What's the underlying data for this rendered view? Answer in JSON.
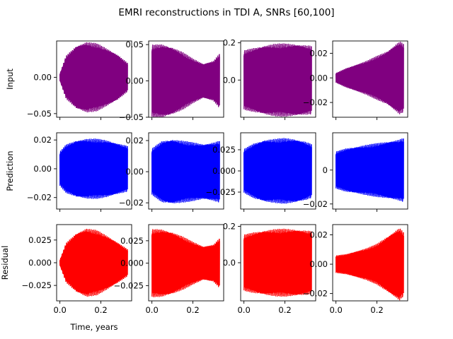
{
  "figure": {
    "title": "EMRI reconstructions in TDI A, SNRs [60,100]",
    "xlabel": "Time, years",
    "row_labels": [
      "Input",
      "Prediction",
      "Residual"
    ]
  },
  "colors": {
    "input": "#800080",
    "prediction": "#0000ff",
    "residual": "#ff0000"
  },
  "chart_data": [
    {
      "type": "area",
      "row": "Input",
      "col": 1,
      "series": [
        {
          "name": "",
          "color": "#800080",
          "x": [
            0,
            0.03,
            0.08,
            0.13,
            0.18,
            0.23,
            0.28,
            0.33
          ],
          "envelope": [
            0.005,
            0.03,
            0.044,
            0.049,
            0.047,
            0.04,
            0.032,
            0.02
          ]
        }
      ],
      "xlim": [
        -0.016,
        0.35
      ],
      "ylim": [
        -0.055,
        0.05
      ],
      "xticks": [
        0.0,
        0.2
      ],
      "xtick_labels": [
        "",
        ""
      ],
      "yticks": [
        -0.05,
        0.0
      ],
      "ytick_labels": [
        "−0.05",
        "0.00"
      ]
    },
    {
      "type": "area",
      "row": "Input",
      "col": 2,
      "series": [
        {
          "name": "",
          "color": "#800080",
          "x": [
            0,
            0.05,
            0.1,
            0.15,
            0.2,
            0.25,
            0.3,
            0.33
          ],
          "envelope": [
            0.05,
            0.051,
            0.047,
            0.04,
            0.031,
            0.024,
            0.028,
            0.038
          ]
        }
      ],
      "xlim": [
        -0.016,
        0.35
      ],
      "ylim": [
        -0.05,
        0.055
      ],
      "xticks": [
        0.0,
        0.2
      ],
      "xtick_labels": [
        "",
        ""
      ],
      "yticks": [
        -0.05,
        0.0,
        0.05
      ],
      "ytick_labels": [
        "−0.05",
        "0.00",
        "0.05"
      ]
    },
    {
      "type": "area",
      "row": "Input",
      "col": 3,
      "series": [
        {
          "name": "",
          "color": "#800080",
          "x": [
            0,
            0.05,
            0.1,
            0.15,
            0.2,
            0.25,
            0.3,
            0.33
          ],
          "envelope": [
            0.16,
            0.175,
            0.188,
            0.196,
            0.198,
            0.196,
            0.19,
            0.185
          ]
        }
      ],
      "xlim": [
        -0.016,
        0.35
      ],
      "ylim": [
        -0.2,
        0.21
      ],
      "xticks": [
        0.0,
        0.2
      ],
      "xtick_labels": [
        "",
        ""
      ],
      "yticks": [
        0.0,
        0.2
      ],
      "ytick_labels": [
        "0.0",
        "0.2"
      ]
    },
    {
      "type": "area",
      "row": "Input",
      "col": 4,
      "series": [
        {
          "name": "",
          "color": "#800080",
          "x": [
            0,
            0.05,
            0.1,
            0.15,
            0.2,
            0.25,
            0.28,
            0.31,
            0.33
          ],
          "envelope": [
            0.004,
            0.008,
            0.011,
            0.014,
            0.018,
            0.022,
            0.026,
            0.03,
            0.028
          ]
        }
      ],
      "xlim": [
        -0.016,
        0.35
      ],
      "ylim": [
        -0.032,
        0.03
      ],
      "xticks": [
        0.0,
        0.2
      ],
      "xtick_labels": [
        "",
        ""
      ],
      "yticks": [
        -0.02,
        0.0,
        0.02
      ],
      "ytick_labels": [
        "−0.02",
        "0.00",
        "0.02"
      ]
    },
    {
      "type": "area",
      "row": "Prediction",
      "col": 1,
      "series": [
        {
          "name": "",
          "color": "#0000ff",
          "x": [
            0,
            0.03,
            0.08,
            0.13,
            0.18,
            0.23,
            0.28,
            0.33
          ],
          "envelope": [
            0.012,
            0.017,
            0.02,
            0.021,
            0.021,
            0.02,
            0.018,
            0.016
          ]
        }
      ],
      "xlim": [
        -0.016,
        0.35
      ],
      "ylim": [
        -0.028,
        0.025
      ],
      "xticks": [
        0.0,
        0.2
      ],
      "xtick_labels": [
        "",
        ""
      ],
      "yticks": [
        -0.02,
        0.0,
        0.02
      ],
      "ytick_labels": [
        "−0.02",
        "0.00",
        "0.02"
      ]
    },
    {
      "type": "area",
      "row": "Prediction",
      "col": 2,
      "series": [
        {
          "name": "",
          "color": "#0000ff",
          "x": [
            0,
            0.05,
            0.1,
            0.15,
            0.2,
            0.25,
            0.3,
            0.33
          ],
          "envelope": [
            0.015,
            0.02,
            0.021,
            0.02,
            0.019,
            0.018,
            0.019,
            0.02
          ]
        }
      ],
      "xlim": [
        -0.016,
        0.35
      ],
      "ylim": [
        -0.024,
        0.025
      ],
      "xticks": [
        0.0,
        0.2
      ],
      "xtick_labels": [
        "",
        ""
      ],
      "yticks": [
        -0.02,
        0.0,
        0.02
      ],
      "ytick_labels": [
        "−0.02",
        "0.00",
        "0.02"
      ]
    },
    {
      "type": "area",
      "row": "Prediction",
      "col": 3,
      "series": [
        {
          "name": "",
          "color": "#0000ff",
          "x": [
            0,
            0.05,
            0.1,
            0.15,
            0.2,
            0.25,
            0.3,
            0.33
          ],
          "envelope": [
            0.026,
            0.033,
            0.037,
            0.038,
            0.039,
            0.038,
            0.035,
            0.032
          ]
        }
      ],
      "xlim": [
        -0.016,
        0.35
      ],
      "ylim": [
        -0.045,
        0.045
      ],
      "xticks": [
        0.0,
        0.2
      ],
      "xtick_labels": [
        "",
        ""
      ],
      "yticks": [
        -0.025,
        0.0,
        0.025
      ],
      "ytick_labels": [
        "−0.025",
        "0.000",
        "0.025"
      ]
    },
    {
      "type": "area",
      "row": "Prediction",
      "col": 4,
      "series": [
        {
          "name": "",
          "color": "#0000ff",
          "x": [
            0,
            0.05,
            0.1,
            0.15,
            0.2,
            0.25,
            0.3,
            0.33
          ],
          "envelope": [
            0.011,
            0.013,
            0.014,
            0.015,
            0.016,
            0.017,
            0.018,
            0.019
          ]
        }
      ],
      "xlim": [
        -0.016,
        0.35
      ],
      "ylim": [
        -0.023,
        0.022
      ],
      "xticks": [
        0.0,
        0.2
      ],
      "xtick_labels": [
        "",
        ""
      ],
      "yticks": [
        -0.02,
        0.0
      ],
      "ytick_labels": [
        "−0.02",
        "0"
      ]
    },
    {
      "type": "area",
      "row": "Residual",
      "col": 1,
      "series": [
        {
          "name": "",
          "color": "#ff0000",
          "x": [
            0,
            0.03,
            0.08,
            0.13,
            0.18,
            0.23,
            0.28,
            0.33
          ],
          "envelope": [
            0.003,
            0.022,
            0.033,
            0.038,
            0.036,
            0.03,
            0.023,
            0.015
          ]
        }
      ],
      "xlim": [
        -0.016,
        0.35
      ],
      "ylim": [
        -0.042,
        0.042
      ],
      "xticks": [
        0.0,
        0.2
      ],
      "xtick_labels": [
        "0.0",
        "0.2"
      ],
      "yticks": [
        -0.025,
        0.0,
        0.025
      ],
      "ytick_labels": [
        "−0.025",
        "0.000",
        "0.025"
      ]
    },
    {
      "type": "area",
      "row": "Residual",
      "col": 2,
      "series": [
        {
          "name": "",
          "color": "#ff0000",
          "x": [
            0,
            0.05,
            0.1,
            0.15,
            0.2,
            0.25,
            0.3,
            0.33
          ],
          "envelope": [
            0.038,
            0.038,
            0.035,
            0.03,
            0.024,
            0.019,
            0.021,
            0.028
          ]
        }
      ],
      "xlim": [
        -0.016,
        0.35
      ],
      "ylim": [
        -0.042,
        0.043
      ],
      "xticks": [
        0.0,
        0.2
      ],
      "xtick_labels": [
        "0.0",
        "0.2"
      ],
      "yticks": [
        -0.025,
        0.0,
        0.025
      ],
      "ytick_labels": [
        "−0.025",
        "0.000",
        "0.025"
      ]
    },
    {
      "type": "area",
      "row": "Residual",
      "col": 3,
      "series": [
        {
          "name": "",
          "color": "#ff0000",
          "x": [
            0,
            0.05,
            0.1,
            0.15,
            0.2,
            0.25,
            0.3,
            0.33
          ],
          "envelope": [
            0.155,
            0.17,
            0.18,
            0.186,
            0.188,
            0.186,
            0.18,
            0.175
          ]
        }
      ],
      "xlim": [
        -0.016,
        0.35
      ],
      "ylim": [
        -0.21,
        0.21
      ],
      "xticks": [
        0.0,
        0.2
      ],
      "xtick_labels": [
        "0.0",
        "0.2"
      ],
      "yticks": [
        0.0,
        0.2
      ],
      "ytick_labels": [
        "0.0",
        "0.2"
      ]
    },
    {
      "type": "area",
      "row": "Residual",
      "col": 4,
      "series": [
        {
          "name": "",
          "color": "#ff0000",
          "x": [
            0,
            0.05,
            0.1,
            0.15,
            0.2,
            0.25,
            0.28,
            0.31,
            0.33
          ],
          "envelope": [
            0.006,
            0.007,
            0.009,
            0.011,
            0.014,
            0.019,
            0.022,
            0.025,
            0.022
          ]
        }
      ],
      "xlim": [
        -0.016,
        0.35
      ],
      "ylim": [
        -0.025,
        0.027
      ],
      "xticks": [
        0.0,
        0.2
      ],
      "xtick_labels": [
        "0.0",
        "0.2"
      ],
      "yticks": [
        -0.02,
        0.0,
        0.02
      ],
      "ytick_labels": [
        "−0.02",
        "0.00",
        "0.02"
      ]
    }
  ]
}
